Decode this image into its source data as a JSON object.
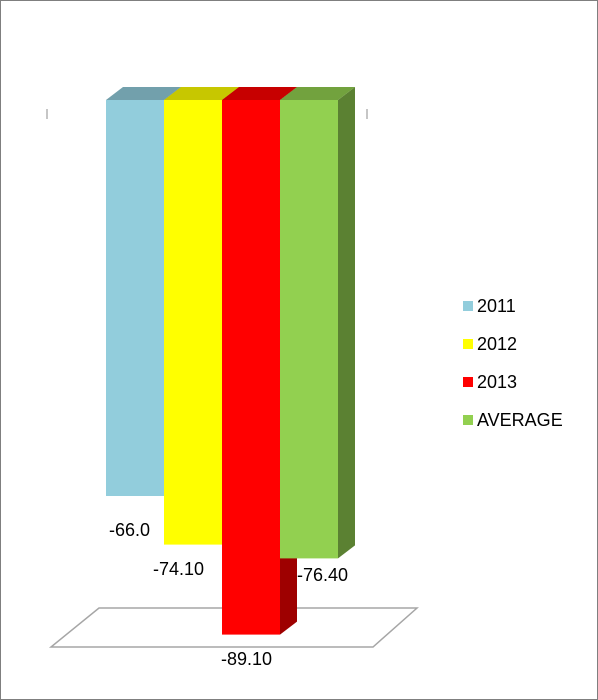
{
  "chart_data": {
    "type": "bar",
    "title": "",
    "xlabel": "",
    "ylabel": "",
    "categories": [
      ""
    ],
    "series": [
      {
        "name": "2011",
        "values": [
          -66.0
        ],
        "label": "-66.0",
        "color": "#92CDDC"
      },
      {
        "name": "2012",
        "values": [
          -74.1
        ],
        "label": "-74.10",
        "color": "#FFFF00"
      },
      {
        "name": "2013",
        "values": [
          -89.1
        ],
        "label": "-89.10",
        "color": "#FF0000"
      },
      {
        "name": "AVERAGE",
        "values": [
          -76.4
        ],
        "label": "-76.40",
        "color": "#92D050"
      }
    ],
    "ylim": [
      -100,
      0
    ],
    "grid": false,
    "legend": "right",
    "style": "3d-column"
  }
}
